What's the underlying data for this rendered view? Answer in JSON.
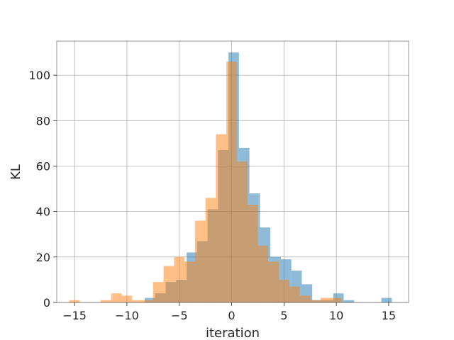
{
  "chart_data": {
    "type": "bar",
    "subtype": "overlaid-histogram",
    "title": "",
    "xlabel": "iteration",
    "ylabel": "KL",
    "xlim": [
      -16.7,
      16.9
    ],
    "ylim": [
      0,
      115
    ],
    "xticks": [
      -15,
      -10,
      -5,
      0,
      5,
      10,
      15
    ],
    "xtick_labels": [
      "−15",
      "−10",
      "−5",
      "0",
      "5",
      "10",
      "15"
    ],
    "yticks": [
      0,
      20,
      40,
      60,
      80,
      100
    ],
    "ytick_labels": [
      "0",
      "20",
      "40",
      "60",
      "80",
      "100"
    ],
    "grid": true,
    "legend": "none",
    "series": [
      {
        "color": "#1f77b4",
        "opacity": 0.5,
        "bins": [
          {
            "x0": -8.3,
            "x1": -7.3,
            "value": 2
          },
          {
            "x0": -7.3,
            "x1": -6.3,
            "value": 4
          },
          {
            "x0": -6.3,
            "x1": -5.3,
            "value": 9
          },
          {
            "x0": -5.3,
            "x1": -4.3,
            "value": 10
          },
          {
            "x0": -4.3,
            "x1": -3.3,
            "value": 22
          },
          {
            "x0": -3.3,
            "x1": -2.3,
            "value": 27
          },
          {
            "x0": -2.3,
            "x1": -1.3,
            "value": 41
          },
          {
            "x0": -1.3,
            "x1": -0.3,
            "value": 67
          },
          {
            "x0": -0.3,
            "x1": 0.7,
            "value": 110
          },
          {
            "x0": 0.7,
            "x1": 1.7,
            "value": 68
          },
          {
            "x0": 1.7,
            "x1": 2.7,
            "value": 48
          },
          {
            "x0": 2.7,
            "x1": 3.7,
            "value": 33
          },
          {
            "x0": 3.7,
            "x1": 4.7,
            "value": 20
          },
          {
            "x0": 4.7,
            "x1": 5.7,
            "value": 19
          },
          {
            "x0": 5.7,
            "x1": 6.7,
            "value": 14
          },
          {
            "x0": 6.7,
            "x1": 7.7,
            "value": 8
          },
          {
            "x0": 7.7,
            "x1": 8.7,
            "value": 1
          },
          {
            "x0": 8.7,
            "x1": 9.7,
            "value": 1
          },
          {
            "x0": 9.7,
            "x1": 10.7,
            "value": 4
          },
          {
            "x0": 10.7,
            "x1": 11.7,
            "value": 1
          },
          {
            "x0": 14.3,
            "x1": 15.3,
            "value": 2
          }
        ]
      },
      {
        "color": "#ff7f0e",
        "opacity": 0.5,
        "bins": [
          {
            "x0": -15.5,
            "x1": -14.5,
            "value": 1
          },
          {
            "x0": -12.5,
            "x1": -11.5,
            "value": 1
          },
          {
            "x0": -11.5,
            "x1": -10.5,
            "value": 4
          },
          {
            "x0": -10.5,
            "x1": -9.5,
            "value": 3
          },
          {
            "x0": -9.5,
            "x1": -8.5,
            "value": 1
          },
          {
            "x0": -8.5,
            "x1": -7.5,
            "value": 1
          },
          {
            "x0": -7.5,
            "x1": -6.5,
            "value": 9
          },
          {
            "x0": -6.5,
            "x1": -5.5,
            "value": 16
          },
          {
            "x0": -5.5,
            "x1": -4.5,
            "value": 20
          },
          {
            "x0": -4.5,
            "x1": -3.5,
            "value": 18
          },
          {
            "x0": -3.5,
            "x1": -2.5,
            "value": 36
          },
          {
            "x0": -2.5,
            "x1": -1.5,
            "value": 46
          },
          {
            "x0": -1.5,
            "x1": -0.5,
            "value": 74
          },
          {
            "x0": -0.5,
            "x1": 0.5,
            "value": 106
          },
          {
            "x0": 0.5,
            "x1": 1.5,
            "value": 62
          },
          {
            "x0": 1.5,
            "x1": 2.5,
            "value": 43
          },
          {
            "x0": 2.5,
            "x1": 3.5,
            "value": 25
          },
          {
            "x0": 3.5,
            "x1": 4.5,
            "value": 18
          },
          {
            "x0": 4.5,
            "x1": 5.5,
            "value": 10
          },
          {
            "x0": 5.5,
            "x1": 6.5,
            "value": 7
          },
          {
            "x0": 6.5,
            "x1": 7.5,
            "value": 3
          },
          {
            "x0": 7.5,
            "x1": 8.5,
            "value": 1
          },
          {
            "x0": 8.5,
            "x1": 9.5,
            "value": 2
          },
          {
            "x0": 9.5,
            "x1": 10.5,
            "value": 2
          }
        ]
      }
    ]
  }
}
